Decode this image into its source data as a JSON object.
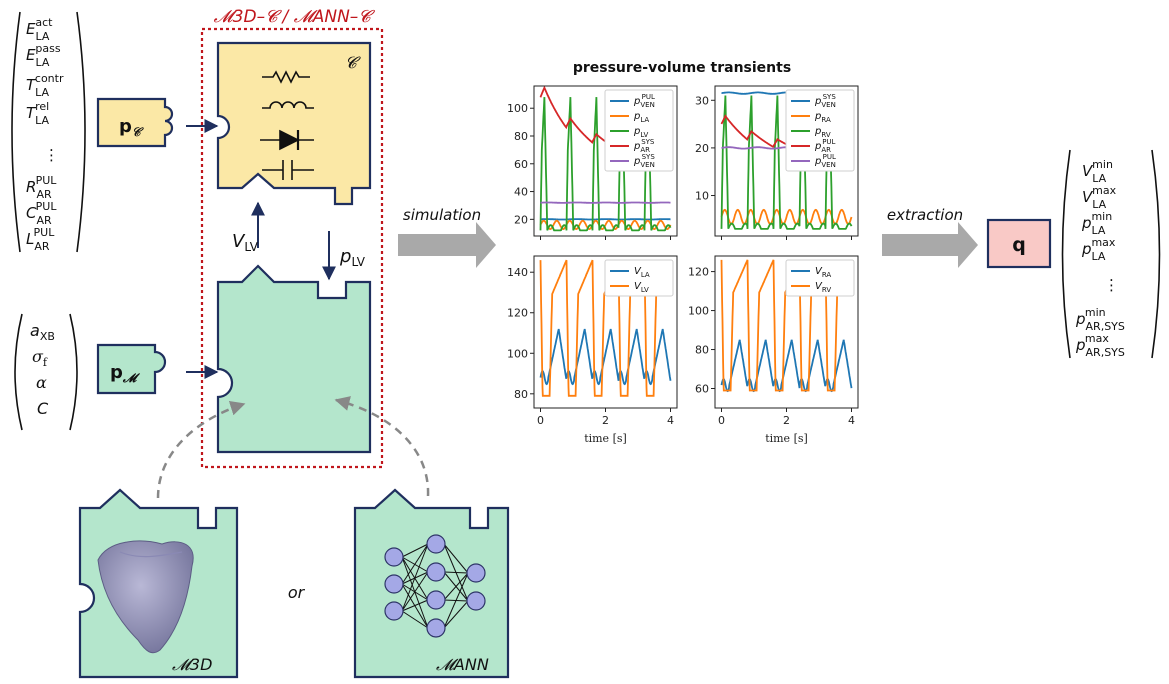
{
  "diagram": {
    "coupled_label": "𝓜3D–𝓒 / 𝓜ANN–𝓒",
    "circuit_label": "𝓒",
    "params_circuit": "p𝓒",
    "params_model": "p𝓜",
    "output_box": "q",
    "arrow_simulation": "simulation",
    "arrow_extraction": "extraction",
    "v_lv": "V_LV",
    "p_lv": "p_LV",
    "or_text": "or",
    "m3d_label": "𝓜3D",
    "mann_label": "𝓜ANN",
    "circuit_vector": [
      "E_LA^act",
      "E_LA^pass",
      "T_LA^contr",
      "T_LA^rel",
      "⋮",
      "R_AR^PUL",
      "C_AR^PUL",
      "L_AR^PUL"
    ],
    "model_vector": [
      "a_XB",
      "σ_f",
      "α",
      "C"
    ],
    "qoi_vector": [
      "V_LA^min",
      "V_LA^max",
      "p_LA^min",
      "p_LA^max",
      "⋮",
      "p_AR,SYS^min",
      "p_AR,SYS^max"
    ]
  },
  "colors": {
    "circuit_fill": "#fbe8a6",
    "model_fill": "#b4e6cc",
    "output_fill": "#f9c9c6",
    "border": "#1f2f5e",
    "dotted_red": "#c0161c",
    "gray_arrow": "#a9a9a9"
  },
  "chart_data": [
    {
      "type": "line",
      "title": "pressure-volume transients",
      "panel": "top-left",
      "xlim": [
        -0.2,
        4.2
      ],
      "ylim": [
        8,
        116
      ],
      "yticks": [
        20,
        40,
        60,
        80,
        100
      ],
      "xticks": [
        0,
        2,
        4
      ],
      "legend": "top-right",
      "series": [
        {
          "name": "p_VEN^PUL",
          "color": "#1f77b4",
          "kind": "flat",
          "level": 20
        },
        {
          "name": "p_LA",
          "color": "#ff7f0e",
          "kind": "osc",
          "low": 13,
          "high": 19
        },
        {
          "name": "p_LV",
          "color": "#2ca02c",
          "kind": "spike",
          "low": 12,
          "high": 108
        },
        {
          "name": "p_AR^SYS",
          "color": "#d62728",
          "kind": "decay",
          "low": 62,
          "high": 110,
          "cycles": 2
        },
        {
          "name": "p_VEN^SYS",
          "color": "#9467bd",
          "kind": "flat",
          "level": 32
        }
      ]
    },
    {
      "type": "line",
      "panel": "top-right",
      "xlim": [
        -0.2,
        4.2
      ],
      "ylim": [
        1.5,
        33
      ],
      "yticks": [
        10,
        20,
        30
      ],
      "xticks": [
        0,
        2,
        4
      ],
      "legend": "top-right",
      "series": [
        {
          "name": "p_VEN^SYS",
          "color": "#1f77b4",
          "kind": "flat",
          "level": 31.5
        },
        {
          "name": "p_RA",
          "color": "#ff7f0e",
          "kind": "osc",
          "low": 4,
          "high": 7
        },
        {
          "name": "p_RV",
          "color": "#2ca02c",
          "kind": "spike",
          "low": 3,
          "high": 31
        },
        {
          "name": "p_AR^PUL",
          "color": "#d62728",
          "kind": "decay",
          "low": 19,
          "high": 26,
          "cycles": 2
        },
        {
          "name": "p_VEN^PUL",
          "color": "#9467bd",
          "kind": "flat",
          "level": 20
        }
      ]
    },
    {
      "type": "line",
      "panel": "bottom-left",
      "xlim": [
        -0.2,
        4.2
      ],
      "ylim": [
        73,
        148
      ],
      "yticks": [
        80,
        100,
        120,
        140
      ],
      "xticks": [
        0,
        2,
        4
      ],
      "xlabel": "time [s]",
      "legend": "top-right",
      "series": [
        {
          "name": "V_LA",
          "color": "#1f77b4",
          "kind": "va",
          "low": 80,
          "high": 112
        },
        {
          "name": "V_LV",
          "color": "#ff7f0e",
          "kind": "vv",
          "low": 79,
          "high": 146
        }
      ]
    },
    {
      "type": "line",
      "panel": "bottom-right",
      "xlim": [
        -0.2,
        4.2
      ],
      "ylim": [
        50,
        128
      ],
      "yticks": [
        60,
        80,
        100,
        120
      ],
      "xticks": [
        0,
        2,
        4
      ],
      "xlabel": "time [s]",
      "legend": "top-right",
      "series": [
        {
          "name": "V_RA",
          "color": "#1f77b4",
          "kind": "va",
          "low": 54,
          "high": 85
        },
        {
          "name": "V_RV",
          "color": "#ff7f0e",
          "kind": "vv",
          "low": 59,
          "high": 126
        }
      ]
    }
  ]
}
